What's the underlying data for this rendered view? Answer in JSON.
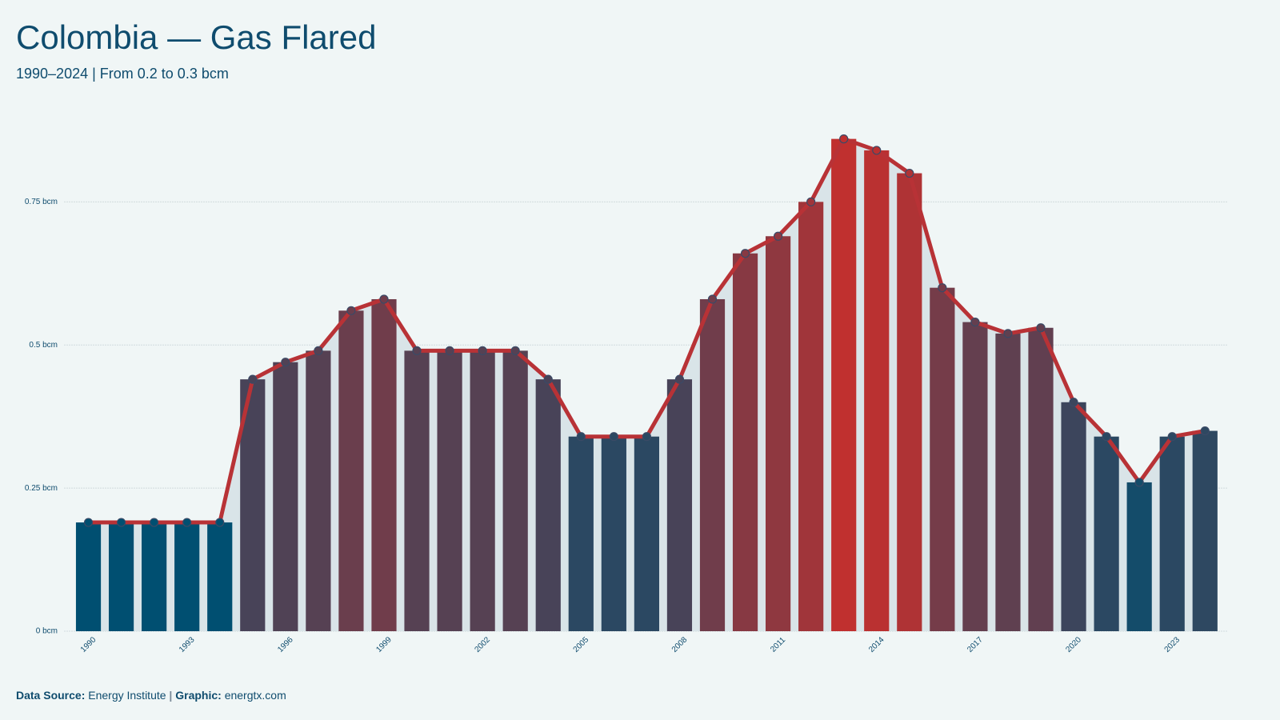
{
  "chart_data": {
    "type": "bar_line",
    "title": "Colombia — Gas Flared",
    "subtitle": "1990–2024 | From 0.2 to 0.3 bcm",
    "x": [
      1990,
      1991,
      1992,
      1993,
      1994,
      1995,
      1996,
      1997,
      1998,
      1999,
      2000,
      2001,
      2002,
      2003,
      2004,
      2005,
      2006,
      2007,
      2008,
      2009,
      2010,
      2011,
      2012,
      2013,
      2014,
      2015,
      2016,
      2017,
      2018,
      2019,
      2020,
      2021,
      2022,
      2023,
      2024
    ],
    "values": [
      0.19,
      0.19,
      0.19,
      0.19,
      0.19,
      0.44,
      0.47,
      0.49,
      0.56,
      0.58,
      0.49,
      0.49,
      0.49,
      0.49,
      0.44,
      0.34,
      0.34,
      0.34,
      0.44,
      0.58,
      0.66,
      0.69,
      0.75,
      0.86,
      0.84,
      0.8,
      0.6,
      0.54,
      0.52,
      0.53,
      0.4,
      0.34,
      0.26,
      0.34,
      0.35
    ],
    "xlim": [
      1989.5,
      2024.7
    ],
    "xticks": [
      1990,
      1993,
      1996,
      1999,
      2002,
      2005,
      2008,
      2011,
      2014,
      2017,
      2020,
      2023
    ],
    "ylim": [
      0,
      0.9
    ],
    "yticks": [
      {
        "value": 0,
        "label": "0 bcm"
      },
      {
        "value": 0.25,
        "label": "0.25 bcm"
      },
      {
        "value": 0.5,
        "label": "0.5 bcm"
      },
      {
        "value": 0.75,
        "label": "0.75 bcm"
      }
    ],
    "grid": true,
    "color_low": "#004f71",
    "color_high": "#c0302f",
    "line_color": "#b83236",
    "area_color": "#d9e4e8",
    "source_label": "Data Source:",
    "source": "Energy Institute",
    "separator": "|",
    "graphic_label": "Graphic:",
    "graphic": "energtx.com"
  }
}
